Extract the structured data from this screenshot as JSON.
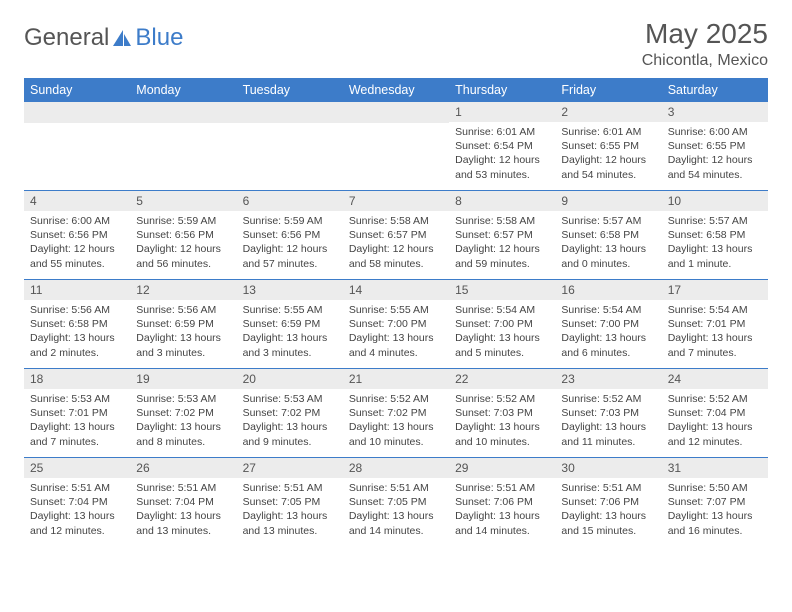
{
  "logo": {
    "part1": "General",
    "part2": "Blue"
  },
  "title": "May 2025",
  "subtitle": "Chicontla, Mexico",
  "colors": {
    "header_bg": "#3d7cc9",
    "header_text": "#ffffff",
    "daynum_bg": "#ececec",
    "text": "#444444",
    "rule": "#3d7cc9"
  },
  "dayNames": [
    "Sunday",
    "Monday",
    "Tuesday",
    "Wednesday",
    "Thursday",
    "Friday",
    "Saturday"
  ],
  "weeks": [
    [
      null,
      null,
      null,
      null,
      {
        "n": "1",
        "sr": "6:01 AM",
        "ss": "6:54 PM",
        "dl": "12 hours and 53 minutes."
      },
      {
        "n": "2",
        "sr": "6:01 AM",
        "ss": "6:55 PM",
        "dl": "12 hours and 54 minutes."
      },
      {
        "n": "3",
        "sr": "6:00 AM",
        "ss": "6:55 PM",
        "dl": "12 hours and 54 minutes."
      }
    ],
    [
      {
        "n": "4",
        "sr": "6:00 AM",
        "ss": "6:56 PM",
        "dl": "12 hours and 55 minutes."
      },
      {
        "n": "5",
        "sr": "5:59 AM",
        "ss": "6:56 PM",
        "dl": "12 hours and 56 minutes."
      },
      {
        "n": "6",
        "sr": "5:59 AM",
        "ss": "6:56 PM",
        "dl": "12 hours and 57 minutes."
      },
      {
        "n": "7",
        "sr": "5:58 AM",
        "ss": "6:57 PM",
        "dl": "12 hours and 58 minutes."
      },
      {
        "n": "8",
        "sr": "5:58 AM",
        "ss": "6:57 PM",
        "dl": "12 hours and 59 minutes."
      },
      {
        "n": "9",
        "sr": "5:57 AM",
        "ss": "6:58 PM",
        "dl": "13 hours and 0 minutes."
      },
      {
        "n": "10",
        "sr": "5:57 AM",
        "ss": "6:58 PM",
        "dl": "13 hours and 1 minute."
      }
    ],
    [
      {
        "n": "11",
        "sr": "5:56 AM",
        "ss": "6:58 PM",
        "dl": "13 hours and 2 minutes."
      },
      {
        "n": "12",
        "sr": "5:56 AM",
        "ss": "6:59 PM",
        "dl": "13 hours and 3 minutes."
      },
      {
        "n": "13",
        "sr": "5:55 AM",
        "ss": "6:59 PM",
        "dl": "13 hours and 3 minutes."
      },
      {
        "n": "14",
        "sr": "5:55 AM",
        "ss": "7:00 PM",
        "dl": "13 hours and 4 minutes."
      },
      {
        "n": "15",
        "sr": "5:54 AM",
        "ss": "7:00 PM",
        "dl": "13 hours and 5 minutes."
      },
      {
        "n": "16",
        "sr": "5:54 AM",
        "ss": "7:00 PM",
        "dl": "13 hours and 6 minutes."
      },
      {
        "n": "17",
        "sr": "5:54 AM",
        "ss": "7:01 PM",
        "dl": "13 hours and 7 minutes."
      }
    ],
    [
      {
        "n": "18",
        "sr": "5:53 AM",
        "ss": "7:01 PM",
        "dl": "13 hours and 7 minutes."
      },
      {
        "n": "19",
        "sr": "5:53 AM",
        "ss": "7:02 PM",
        "dl": "13 hours and 8 minutes."
      },
      {
        "n": "20",
        "sr": "5:53 AM",
        "ss": "7:02 PM",
        "dl": "13 hours and 9 minutes."
      },
      {
        "n": "21",
        "sr": "5:52 AM",
        "ss": "7:02 PM",
        "dl": "13 hours and 10 minutes."
      },
      {
        "n": "22",
        "sr": "5:52 AM",
        "ss": "7:03 PM",
        "dl": "13 hours and 10 minutes."
      },
      {
        "n": "23",
        "sr": "5:52 AM",
        "ss": "7:03 PM",
        "dl": "13 hours and 11 minutes."
      },
      {
        "n": "24",
        "sr": "5:52 AM",
        "ss": "7:04 PM",
        "dl": "13 hours and 12 minutes."
      }
    ],
    [
      {
        "n": "25",
        "sr": "5:51 AM",
        "ss": "7:04 PM",
        "dl": "13 hours and 12 minutes."
      },
      {
        "n": "26",
        "sr": "5:51 AM",
        "ss": "7:04 PM",
        "dl": "13 hours and 13 minutes."
      },
      {
        "n": "27",
        "sr": "5:51 AM",
        "ss": "7:05 PM",
        "dl": "13 hours and 13 minutes."
      },
      {
        "n": "28",
        "sr": "5:51 AM",
        "ss": "7:05 PM",
        "dl": "13 hours and 14 minutes."
      },
      {
        "n": "29",
        "sr": "5:51 AM",
        "ss": "7:06 PM",
        "dl": "13 hours and 14 minutes."
      },
      {
        "n": "30",
        "sr": "5:51 AM",
        "ss": "7:06 PM",
        "dl": "13 hours and 15 minutes."
      },
      {
        "n": "31",
        "sr": "5:50 AM",
        "ss": "7:07 PM",
        "dl": "13 hours and 16 minutes."
      }
    ]
  ],
  "labels": {
    "sunrise": "Sunrise:",
    "sunset": "Sunset:",
    "daylight": "Daylight:"
  }
}
